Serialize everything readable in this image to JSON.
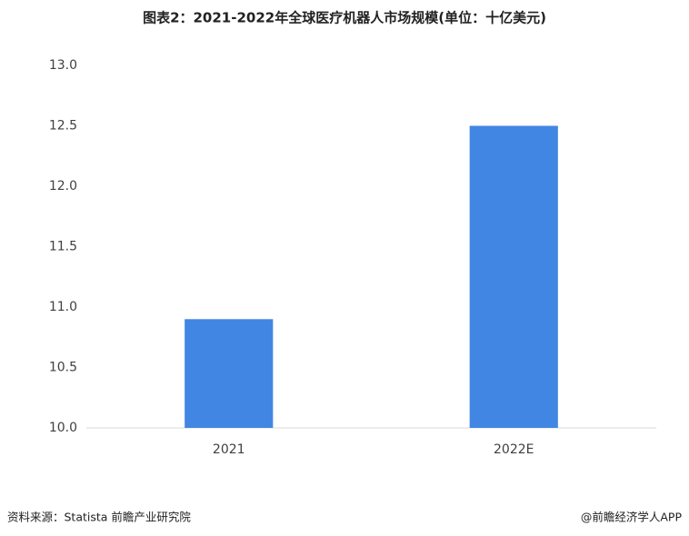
{
  "chart_data": {
    "type": "bar",
    "title": "图表2：2021-2022年全球医疗机器人市场规模(单位：十亿美元)",
    "categories": [
      "2021",
      "2022E"
    ],
    "values": [
      10.9,
      12.5
    ],
    "color": "#4286e3",
    "ylim": [
      10,
      13
    ],
    "yticks": [
      {
        "value": 10,
        "label": "10.0"
      },
      10.5,
      {
        "value": 11,
        "label": "11.0"
      },
      11.5,
      {
        "value": 12,
        "label": "12.0"
      },
      12.5,
      {
        "value": 13,
        "label": "13.0"
      }
    ],
    "grid": false,
    "source": "资料来源：Statista 前瞻产业研究院",
    "credit": "@前瞻经济学人APP"
  }
}
